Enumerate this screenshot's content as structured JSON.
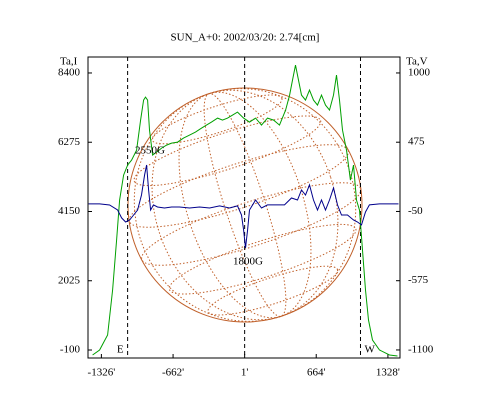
{
  "chart_data": {
    "type": "line",
    "title": "SUN_A+0: 2002/03/20: 2.74[cm]",
    "ylabel": "Ta,I",
    "y2label": "Ta,V",
    "xlim": [
      -1450,
      1440
    ],
    "ylim": [
      -345,
      8890
    ],
    "y2lim": [
      -1161,
      1121
    ],
    "xticks": [
      {
        "value": -1326,
        "label": "-1326'"
      },
      {
        "value": -662,
        "label": "-662'"
      },
      {
        "value": 1,
        "label": "1'"
      },
      {
        "value": 664,
        "label": "664'"
      },
      {
        "value": 1328,
        "label": "1328'"
      }
    ],
    "yticks": [
      -100,
      2025,
      4150,
      6275,
      8400
    ],
    "y2ticks": [
      -1100,
      -575,
      -50,
      475,
      1000
    ],
    "limb_lines": [
      {
        "value": -1083,
        "label": "E"
      },
      {
        "value": 1
      },
      {
        "value": 1074,
        "label": "W"
      }
    ],
    "annotations": [
      "2550G",
      "1800G"
    ],
    "series": [
      {
        "color": "#00a000",
        "x": [
          -1407,
          -1343,
          -1268,
          -1222,
          -1185,
          -1157,
          -1120,
          -1083,
          -1046,
          -1000,
          -963,
          -935,
          -917,
          -898,
          -880,
          -852,
          -815,
          -768,
          -722,
          -676,
          -620,
          -565,
          -509,
          -454,
          -398,
          -352,
          -306,
          -250,
          -204,
          -157,
          -111,
          -65,
          -9,
          46,
          102,
          157,
          213,
          269,
          324,
          380,
          417,
          444,
          472,
          500,
          528,
          565,
          602,
          639,
          676,
          713,
          750,
          787,
          824,
          852,
          880,
          907,
          944,
          981,
          1009,
          1037,
          1065,
          1093,
          1120,
          1148,
          1185,
          1250,
          1343,
          1417
        ],
        "values": [
          -253,
          -100,
          360,
          1740,
          3274,
          4500,
          5267,
          5574,
          5727,
          6034,
          6954,
          7568,
          7660,
          7568,
          6647,
          5881,
          5973,
          6095,
          6187,
          6249,
          6280,
          6402,
          6494,
          6586,
          6709,
          6801,
          6893,
          7016,
          6954,
          7016,
          7107,
          7199,
          7016,
          6893,
          7016,
          6801,
          7016,
          6954,
          6801,
          7261,
          7721,
          8181,
          8641,
          8181,
          7721,
          7568,
          7874,
          7568,
          7414,
          7721,
          7414,
          7261,
          7721,
          8334,
          7568,
          6647,
          6034,
          5114,
          5574,
          4500,
          4194,
          2967,
          1740,
          820,
          207,
          -100,
          -253,
          -284
        ]
      },
      {
        "color": "#00008b",
        "axis": "y2",
        "x": [
          -1444,
          -1343,
          -1250,
          -1176,
          -1139,
          -1102,
          -1065,
          -1028,
          -991,
          -954,
          -926,
          -907,
          -889,
          -870,
          -843,
          -806,
          -741,
          -676,
          -602,
          -509,
          -417,
          -324,
          -231,
          -139,
          -65,
          -28,
          -9,
          9,
          28,
          46,
          102,
          157,
          213,
          278,
          370,
          435,
          491,
          528,
          565,
          602,
          639,
          676,
          713,
          750,
          787,
          824,
          861,
          898,
          954,
          1009,
          1046,
          1083,
          1120,
          1157,
          1250,
          1426
        ],
        "values": [
          7,
          7,
          -1,
          -39,
          -99,
          -130,
          -115,
          -77,
          -39,
          75,
          227,
          302,
          113,
          -39,
          0,
          -16,
          -24,
          -16,
          -16,
          -24,
          -16,
          -24,
          -8,
          -24,
          -8,
          -77,
          -190,
          -327,
          -190,
          -39,
          37,
          -24,
          0,
          0,
          0,
          52,
          37,
          113,
          75,
          151,
          37,
          -39,
          37,
          -39,
          37,
          128,
          0,
          -77,
          -77,
          -115,
          -130,
          -152,
          -54,
          0,
          7,
          7
        ]
      }
    ]
  }
}
